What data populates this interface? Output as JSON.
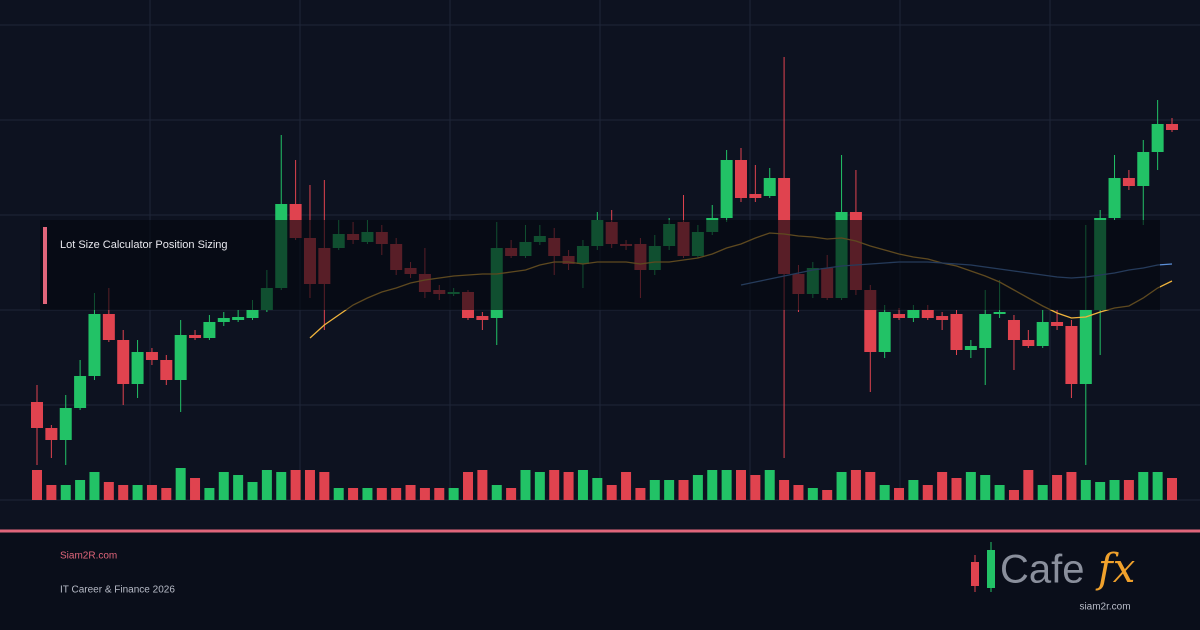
{
  "chart_data": {
    "type": "candlestick",
    "ylim": [
      0,
      500
    ],
    "volume_ylim": [
      0,
      100
    ],
    "up_color": "#22c266",
    "down_color": "#e0434f",
    "open": [
      98,
      72,
      60,
      92,
      124,
      186,
      160,
      116,
      148,
      140,
      120,
      165,
      162,
      178,
      180,
      182,
      190,
      212,
      296,
      262,
      252,
      252,
      266,
      258,
      268,
      256,
      232,
      226,
      210,
      206,
      208,
      184,
      182,
      252,
      244,
      258,
      262,
      244,
      236,
      254,
      278,
      256,
      256,
      230,
      254,
      278,
      244,
      268,
      282,
      340,
      306,
      304,
      322,
      226,
      206,
      232,
      202,
      288,
      210,
      148,
      186,
      182,
      190,
      184,
      186,
      150,
      152,
      186,
      180,
      160,
      154,
      178,
      174,
      116,
      190,
      282,
      322,
      314,
      348,
      376
    ],
    "high": [
      115,
      75,
      105,
      140,
      207,
      212,
      170,
      160,
      152,
      145,
      180,
      170,
      185,
      188,
      190,
      200,
      230,
      365,
      340,
      315,
      320,
      280,
      278,
      280,
      275,
      262,
      238,
      252,
      215,
      212,
      210,
      188,
      278,
      260,
      275,
      275,
      272,
      250,
      260,
      288,
      290,
      260,
      262,
      265,
      282,
      305,
      275,
      295,
      350,
      352,
      335,
      332,
      443,
      235,
      238,
      245,
      345,
      330,
      215,
      195,
      192,
      195,
      195,
      188,
      190,
      160,
      210,
      220,
      185,
      170,
      190,
      190,
      180,
      275,
      290,
      345,
      330,
      360,
      400,
      382
    ],
    "low": [
      35,
      42,
      35,
      90,
      120,
      158,
      95,
      102,
      135,
      115,
      88,
      160,
      160,
      174,
      178,
      180,
      188,
      210,
      260,
      202,
      170,
      250,
      256,
      256,
      245,
      225,
      222,
      202,
      200,
      204,
      180,
      170,
      155,
      242,
      242,
      255,
      225,
      230,
      212,
      250,
      252,
      250,
      202,
      225,
      250,
      242,
      242,
      265,
      278,
      298,
      298,
      302,
      42,
      188,
      202,
      200,
      200,
      205,
      108,
      142,
      180,
      178,
      180,
      170,
      145,
      142,
      115,
      182,
      130,
      152,
      152,
      170,
      102,
      35,
      145,
      280,
      310,
      275,
      330,
      368
    ],
    "close": [
      72,
      60,
      92,
      124,
      186,
      160,
      116,
      148,
      140,
      120,
      165,
      162,
      178,
      182,
      183,
      190,
      212,
      296,
      262,
      216,
      216,
      266,
      260,
      268,
      256,
      230,
      226,
      208,
      206,
      208,
      182,
      180,
      252,
      244,
      258,
      264,
      244,
      236,
      254,
      280,
      256,
      254,
      230,
      254,
      276,
      244,
      268,
      282,
      340,
      302,
      302,
      322,
      226,
      206,
      232,
      202,
      288,
      210,
      148,
      188,
      182,
      190,
      182,
      180,
      150,
      154,
      186,
      188,
      160,
      154,
      178,
      174,
      116,
      190,
      282,
      322,
      314,
      348,
      376,
      370
    ],
    "volume": [
      30,
      15,
      15,
      20,
      28,
      18,
      15,
      15,
      15,
      12,
      32,
      22,
      12,
      28,
      25,
      18,
      30,
      28,
      30,
      30,
      28,
      12,
      12,
      12,
      12,
      12,
      15,
      12,
      12,
      12,
      28,
      30,
      15,
      12,
      30,
      28,
      30,
      28,
      30,
      22,
      15,
      28,
      12,
      20,
      20,
      20,
      25,
      30,
      30,
      30,
      25,
      30,
      20,
      15,
      12,
      10,
      28,
      30,
      28,
      15,
      12,
      20,
      15,
      28,
      22,
      28,
      25,
      15,
      10,
      30,
      15,
      25,
      28,
      20,
      18,
      20,
      20,
      28,
      28,
      22
    ],
    "series": [
      {
        "color": "#f0b43c",
        "values": [
          null,
          null,
          null,
          null,
          null,
          null,
          null,
          null,
          null,
          null,
          null,
          null,
          null,
          null,
          null,
          null,
          null,
          null,
          null,
          162,
          175,
          185,
          195,
          202,
          208,
          212,
          217,
          220,
          222,
          224,
          225,
          226,
          226,
          228,
          230,
          235,
          238,
          238,
          236,
          238,
          238,
          238,
          236,
          238,
          238,
          240,
          242,
          246,
          252,
          256,
          262,
          267,
          266,
          264,
          263,
          261,
          262,
          259,
          254,
          250,
          246,
          243,
          241,
          237,
          234,
          229,
          224,
          218,
          210,
          202,
          194,
          187,
          182,
          183,
          188,
          192,
          194,
          202,
          212,
          219
        ]
      },
      {
        "color": "#5b8fd8",
        "values": [
          null,
          null,
          null,
          null,
          null,
          null,
          null,
          null,
          null,
          null,
          null,
          null,
          null,
          null,
          null,
          null,
          null,
          null,
          null,
          null,
          null,
          null,
          null,
          null,
          null,
          null,
          null,
          null,
          null,
          null,
          null,
          null,
          null,
          null,
          null,
          null,
          null,
          null,
          null,
          null,
          null,
          null,
          null,
          null,
          null,
          null,
          null,
          null,
          null,
          215,
          218,
          221,
          224,
          227,
          230,
          232,
          234,
          235,
          236,
          237,
          238,
          238,
          238,
          237,
          236,
          235,
          233,
          231,
          229,
          227,
          225,
          223,
          222,
          223,
          225,
          227,
          230,
          232,
          235,
          236
        ]
      }
    ]
  },
  "banner": {
    "title": "Lot Size Calculator Position Sizing",
    "site": "Siam2R.com",
    "tagline": "IT Career & Finance 2026",
    "logo_word": "Cafe",
    "logo_accent": "fx",
    "logo_url": "siam2r.com"
  }
}
